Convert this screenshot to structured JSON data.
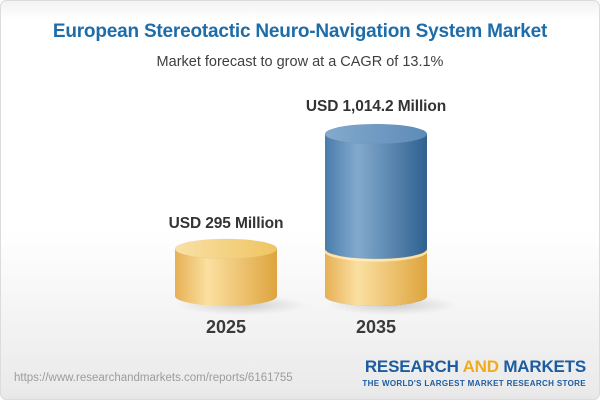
{
  "chart_data": {
    "type": "bar",
    "variant": "3d-cylinder",
    "title": "European Stereotactic Neuro-Navigation System Market",
    "subtitle": "Market forecast to grow at a CAGR of 13.1%",
    "categories": [
      "2025",
      "2035"
    ],
    "values": [
      295,
      1014.2
    ],
    "unit": "USD Million",
    "value_labels": [
      "USD 295 Million",
      "USD 1,014.2 Million"
    ],
    "ylim": [
      0,
      1014.2
    ],
    "grid": false,
    "legend": false,
    "bar_colors": [
      "gold",
      "blue"
    ],
    "base_segment": {
      "bar_index": 1,
      "value": 295,
      "color": "gold"
    },
    "colors": {
      "title_blue": "#1e6ca8",
      "label_text": "#333333",
      "gold_body": [
        "#e6b054",
        "#fbe0a1",
        "#dea43e"
      ],
      "gold_top": [
        "#f9e0a6",
        "#efc561"
      ],
      "blue_body": [
        "#4a7cab",
        "#83aacd",
        "#2f6190"
      ],
      "blue_top": [
        "#84aacd",
        "#5d8bb8"
      ]
    }
  },
  "footer": {
    "url": "https://www.researchandmarkets.com/reports/6161755",
    "logo": {
      "part1": "RESEARCH",
      "part2": "AND",
      "part3": "MARKETS",
      "tagline": "THE WORLD'S LARGEST MARKET RESEARCH STORE",
      "blue": "#1d5c9f",
      "gold": "#f0ac1e"
    }
  }
}
